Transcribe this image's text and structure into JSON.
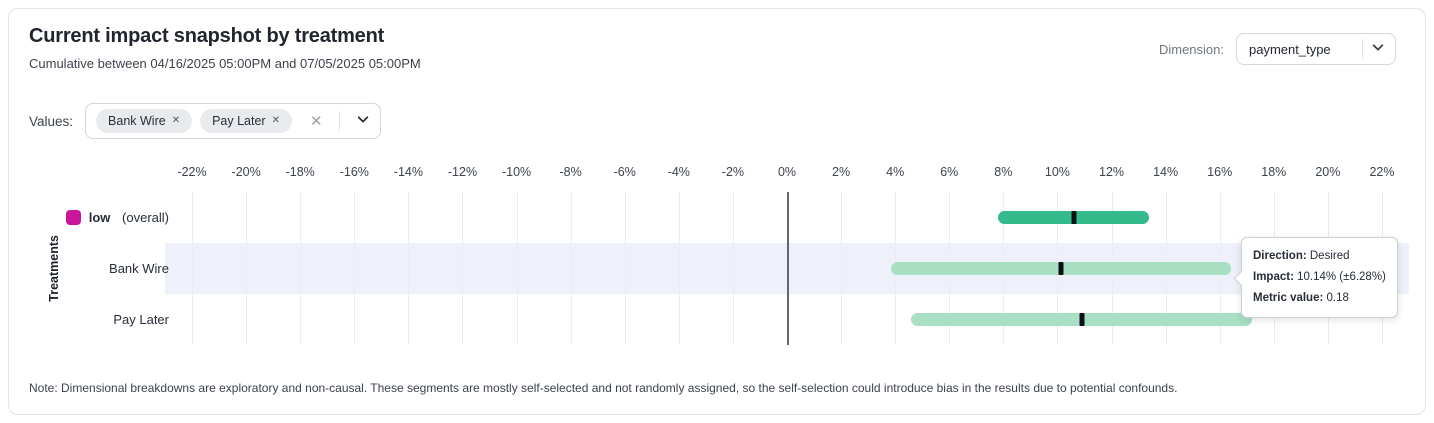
{
  "header": {
    "title": "Current impact snapshot by treatment",
    "subtitle": "Cumulative between 04/16/2025 05:00PM and 07/05/2025 05:00PM"
  },
  "dimension": {
    "label": "Dimension:",
    "value": "payment_type"
  },
  "filters": {
    "label": "Values:",
    "chips": [
      {
        "label": "Bank Wire"
      },
      {
        "label": "Pay Later"
      }
    ]
  },
  "chart_data": {
    "type": "range_bar",
    "orientation": "horizontal",
    "ylabel": "Treatments",
    "xlim": [
      -23,
      23
    ],
    "zero_line": 0,
    "tick_labels": [
      "-22%",
      "-20%",
      "-18%",
      "-16%",
      "-14%",
      "-12%",
      "-10%",
      "-8%",
      "-6%",
      "-4%",
      "-2%",
      "0%",
      "2%",
      "4%",
      "6%",
      "8%",
      "10%",
      "12%",
      "14%",
      "16%",
      "18%",
      "20%",
      "22%"
    ],
    "rows": [
      {
        "label": "low",
        "suffix": "(overall)",
        "bold": true,
        "legend_color": "#cb169b",
        "bar_color": "#35ba8c",
        "low": 7.8,
        "high": 13.4,
        "center": 10.6,
        "highlighted": false
      },
      {
        "label": "Bank Wire",
        "suffix": "",
        "bold": false,
        "bar_color": "#a9dfc3",
        "low": 3.86,
        "high": 16.42,
        "center": 10.14,
        "highlighted": true
      },
      {
        "label": "Pay Later",
        "suffix": "",
        "bold": false,
        "bar_color": "#a9dfc3",
        "low": 4.6,
        "high": 17.2,
        "center": 10.9,
        "highlighted": false
      }
    ],
    "colors": {
      "gridline": "#ecedf1",
      "zero_line": "#63686f",
      "highlight_band": "#eef0fa",
      "center_tick": "#0d1116"
    }
  },
  "tooltip": {
    "lines": [
      {
        "label": "Direction:",
        "value": "Desired"
      },
      {
        "label": "Impact:",
        "value": "10.14% (±6.28%)"
      },
      {
        "label": "Metric value:",
        "value": "0.18"
      }
    ]
  },
  "note": "Note: Dimensional breakdowns are exploratory and non-causal. These segments are mostly self-selected and not randomly assigned, so the self-selection could introduce bias in the results due to potential confounds."
}
